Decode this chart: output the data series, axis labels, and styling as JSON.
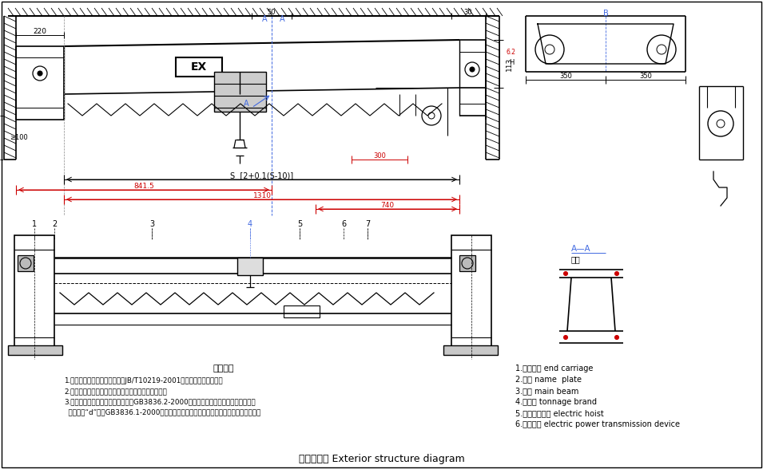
{
  "title": "外形结构图 Exterior structure diagram",
  "bg_color": "#ffffff",
  "line_color": "#000000",
  "blue_color": "#4169E1",
  "red_color": "#cc0000",
  "part_labels": [
    "1.端梁装置 end carriage",
    "2.铭牌 name  plate",
    "3.主梁 main beam",
    "4.吨位牌 tonnage brand",
    "5.防爆电动葫芦 electric hoist",
    "6.输电装置 electric power transmission device"
  ],
  "tech_title": "技术要求",
  "tech_lines": [
    "1.制造、安装、使用等均应符合JB/T10219-2001《防爆梁式起重机》。",
    "2.电机和其它电气部分应根据防爆级别不同相应选用。",
    "3.防爆电机及电气制作和检验应符合GB3836.2-2000《爆炸性气体环境用电气设备隔爆型",
    "  电气设备“d”》。GB3836.1-2000《爆炸性气体环境用电气设备第一部分：通用要求》。"
  ],
  "dim_S": "S  [2+0.1(S-10)]",
  "dim_841": "841.5",
  "dim_1310": "1310",
  "dim_740": "740",
  "dim_300": "300",
  "dim_100": "≥100",
  "dim_220": "220",
  "dim_113": "113",
  "dim_50": "50",
  "dim_30": "30",
  "dim_350a": "350",
  "dim_350b": "350",
  "label_A": "A",
  "label_AA": "A—A",
  "label_AA2": "放大",
  "label_B": "B",
  "label_EX": "EX"
}
